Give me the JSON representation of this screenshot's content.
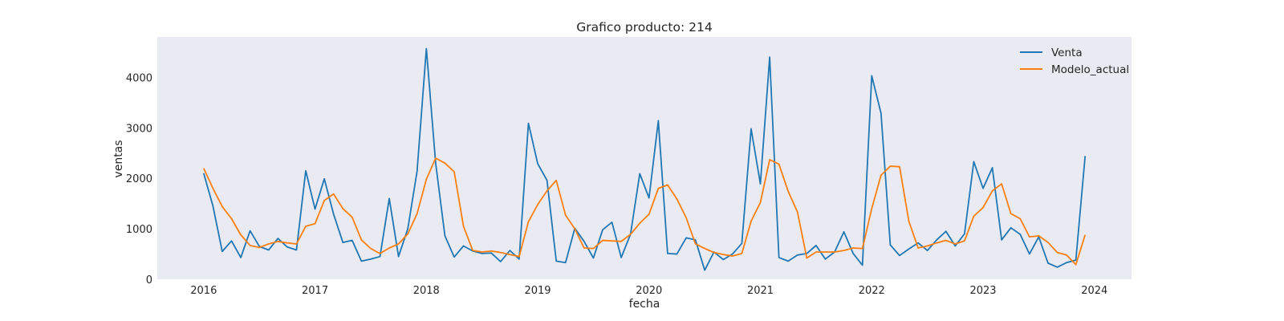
{
  "chart_data": {
    "type": "line",
    "title": "Grafico producto: 214",
    "xlabel": "fecha",
    "ylabel": "ventas",
    "x_ticks": [
      "2016",
      "2017",
      "2018",
      "2019",
      "2020",
      "2021",
      "2022",
      "2023",
      "2024"
    ],
    "y_ticks": [
      0,
      1000,
      2000,
      3000,
      4000
    ],
    "ylim": [
      0,
      4800
    ],
    "xlim": [
      "2015-08",
      "2024-05"
    ],
    "x_start": "2016-01",
    "x_frequency": "monthly",
    "grid": false,
    "background": "#eaeaf2",
    "legend_position": "top-right",
    "series": [
      {
        "name": "Venta",
        "color": "#1f77b4",
        "values": [
          2100,
          1450,
          550,
          760,
          430,
          960,
          650,
          580,
          810,
          640,
          580,
          2150,
          1390,
          1990,
          1290,
          730,
          770,
          360,
          400,
          450,
          1600,
          450,
          1000,
          2140,
          4570,
          2300,
          860,
          440,
          660,
          560,
          510,
          520,
          350,
          570,
          400,
          3090,
          2290,
          1960,
          360,
          330,
          1010,
          750,
          420,
          980,
          1130,
          430,
          890,
          2090,
          1610,
          3140,
          510,
          500,
          820,
          780,
          180,
          540,
          390,
          500,
          710,
          2980,
          1890,
          4400,
          430,
          360,
          480,
          510,
          670,
          400,
          540,
          940,
          510,
          280,
          4030,
          3290,
          680,
          470,
          600,
          720,
          570,
          780,
          950,
          660,
          900,
          2330,
          1800,
          2210,
          780,
          1020,
          890,
          500,
          840,
          320,
          240,
          330,
          380,
          2440
        ]
      },
      {
        "name": "Modelo_actual",
        "color": "#ff7f0e",
        "values": [
          2200,
          1800,
          1440,
          1200,
          880,
          670,
          630,
          700,
          750,
          720,
          700,
          1050,
          1100,
          1560,
          1690,
          1400,
          1230,
          780,
          610,
          510,
          620,
          700,
          900,
          1300,
          1980,
          2400,
          2300,
          2130,
          1050,
          570,
          540,
          560,
          530,
          490,
          450,
          1140,
          1480,
          1750,
          1960,
          1270,
          1000,
          620,
          610,
          770,
          760,
          750,
          890,
          1110,
          1290,
          1800,
          1870,
          1590,
          1220,
          700,
          610,
          530,
          490,
          460,
          510,
          1150,
          1520,
          2370,
          2280,
          1740,
          1330,
          420,
          540,
          540,
          540,
          570,
          620,
          610,
          1400,
          2060,
          2240,
          2230,
          1150,
          620,
          660,
          720,
          770,
          700,
          760,
          1250,
          1420,
          1750,
          1890,
          1300,
          1200,
          840,
          860,
          730,
          530,
          480,
          290,
          880
        ]
      }
    ]
  }
}
